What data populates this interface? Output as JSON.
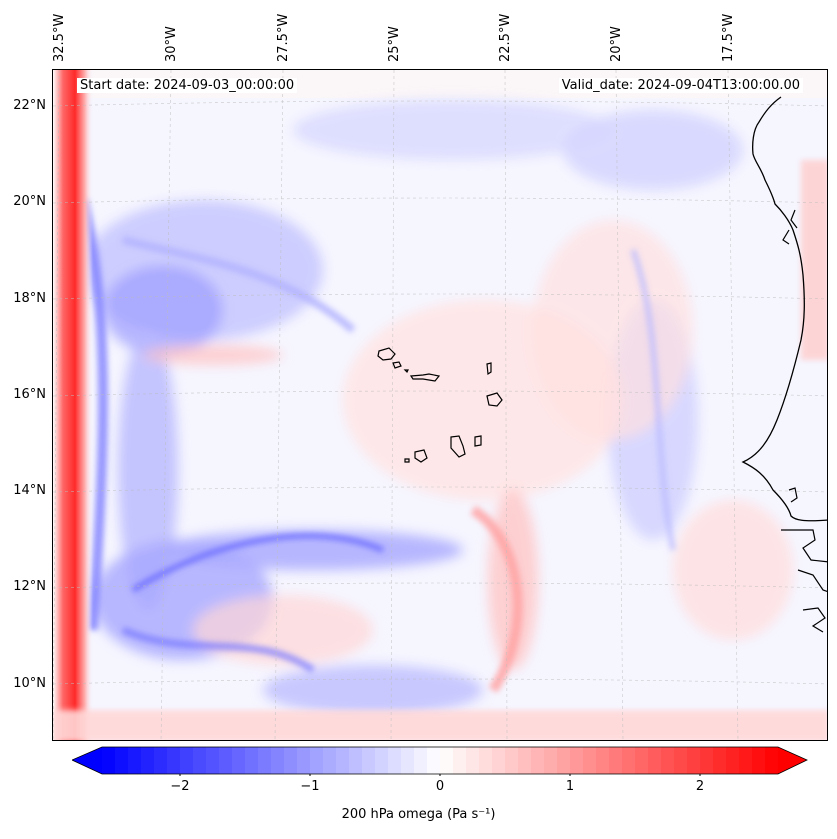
{
  "annotations": {
    "start_date": "Start date: 2024-09-03_00:00:00",
    "valid_date": "Valid_date: 2024-09-04T13:00:00.00"
  },
  "axes": {
    "longitude_labels": [
      "32.5°W",
      "30°W",
      "27.5°W",
      "25°W",
      "22.5°W",
      "20°W",
      "17.5°W"
    ],
    "latitude_labels": [
      "22°N",
      "20°N",
      "18°N",
      "16°N",
      "14°N",
      "12°N",
      "10°N"
    ]
  },
  "map": {
    "projection": "lambert conformal",
    "gridlines": true,
    "coastlines": true,
    "extent": {
      "lon_min": -32.8,
      "lon_max": -16.2,
      "lat_min": 8.9,
      "lat_max": 22.8
    }
  },
  "colorbar": {
    "colormap": "bwr",
    "min": -2.6,
    "max": 2.6,
    "ticks": [
      "−2",
      "−1",
      "0",
      "1",
      "2"
    ],
    "tick_values": [
      -2,
      -1,
      0,
      1,
      2
    ],
    "extend": "both",
    "label": "200 hPa omega (Pa s⁻¹)",
    "colors": {
      "negative": "#0000ff",
      "zero": "#ffffff",
      "positive": "#ff0000"
    }
  }
}
